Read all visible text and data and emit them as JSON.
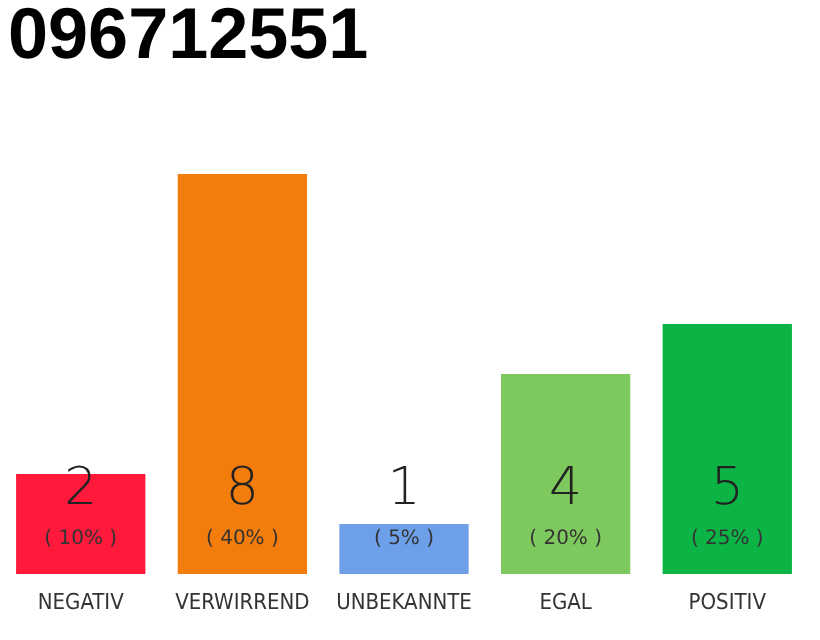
{
  "chart_data": {
    "type": "bar",
    "title": "096712551",
    "categories": [
      "NEGATIV",
      "VERWIRREND",
      "UNBEKANNTE",
      "EGAL",
      "POSITIV"
    ],
    "values": [
      10,
      40,
      5,
      20,
      25
    ],
    "colors": [
      "#ff1a3c",
      "#f27c0c",
      "#6ea0ea",
      "#7ec95e",
      "#0cb446"
    ],
    "value_labels": [
      "( 10% )",
      "( 40% )",
      "( 5% )",
      "( 20% )",
      "( 25% )"
    ],
    "annotations": [
      "2",
      "8",
      "1",
      "4",
      "5"
    ]
  }
}
